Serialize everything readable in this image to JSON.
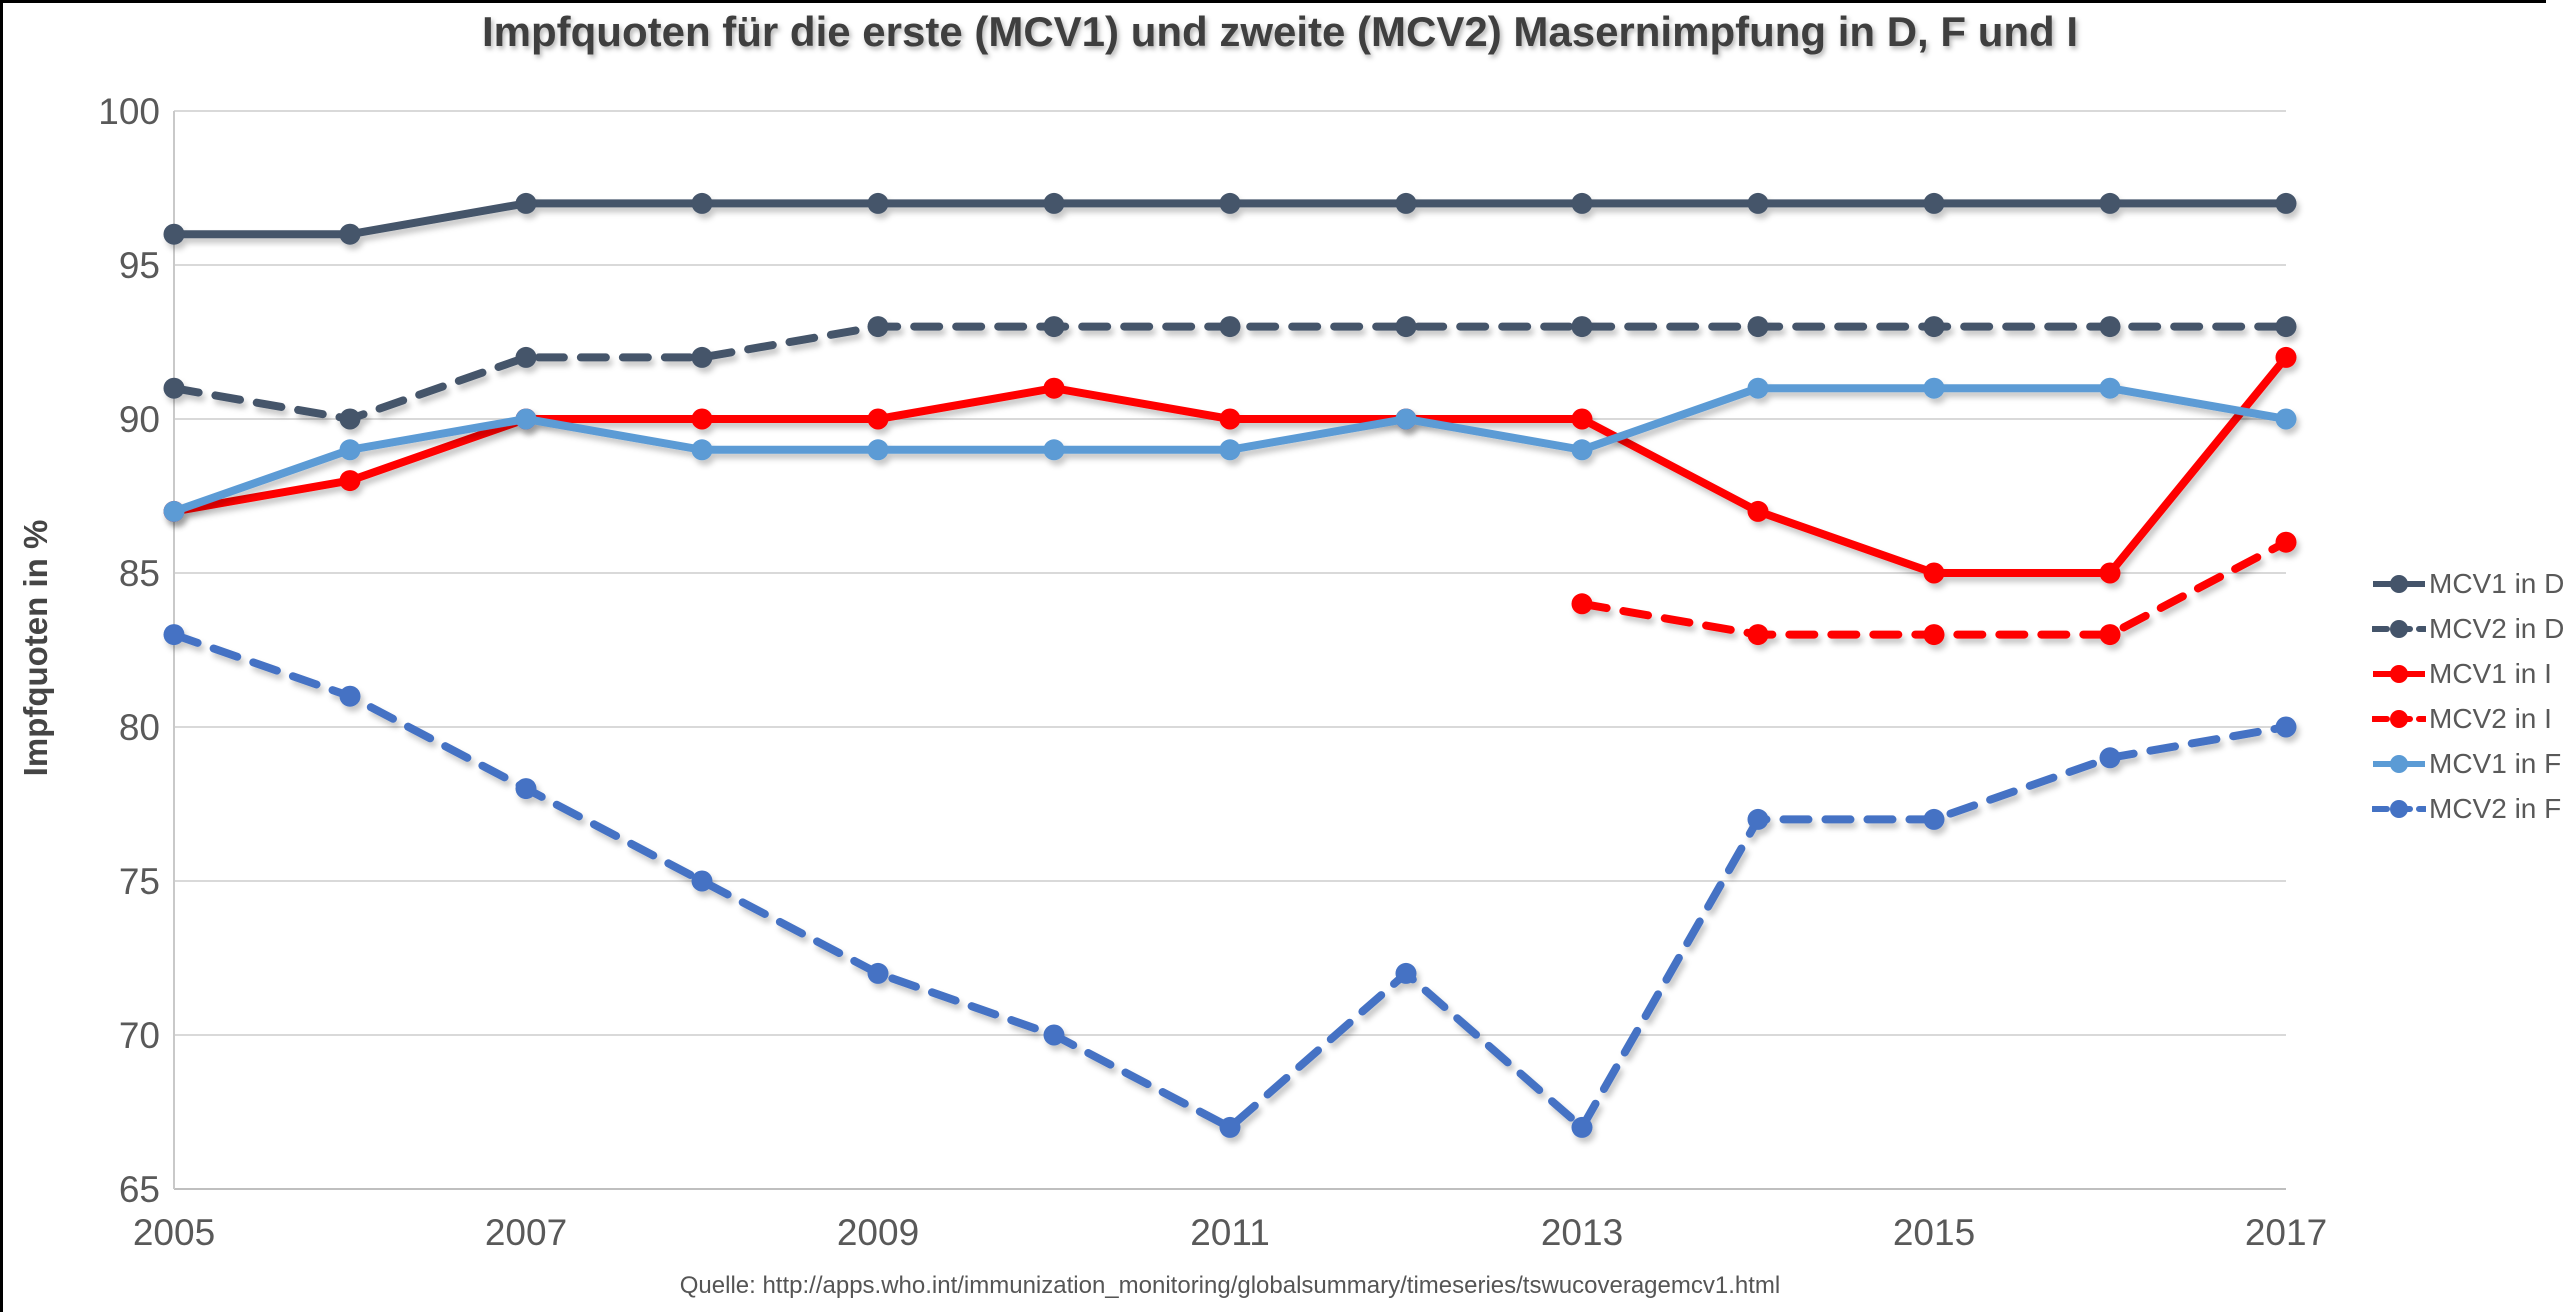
{
  "chart_data": {
    "type": "line",
    "title": "Impfquoten für die erste (MCV1) und zweite (MCV2) Masernimpfung in D, F und I",
    "ylabel": "Impfquoten in %",
    "source": "Quelle: http://apps.who.int/immunization_monitoring/globalsummary/timeseries/tswucoveragemcv1.html",
    "x": [
      2005,
      2006,
      2007,
      2008,
      2009,
      2010,
      2011,
      2012,
      2013,
      2014,
      2015,
      2016,
      2017
    ],
    "x_tick_labels": [
      "2005",
      "2007",
      "2009",
      "2011",
      "2013",
      "2015",
      "2017"
    ],
    "ylim": [
      65,
      100
    ],
    "y_ticks": [
      65,
      70,
      75,
      80,
      85,
      90,
      95,
      100
    ],
    "grid": "horizontal-only",
    "legend_position": "right",
    "series": [
      {
        "name": "MCV1 in D",
        "color": "#44546A",
        "style": "solid",
        "values": [
          96,
          96,
          97,
          97,
          97,
          97,
          97,
          97,
          97,
          97,
          97,
          97,
          97
        ]
      },
      {
        "name": "MCV2 in D",
        "color": "#44546A",
        "style": "dashed",
        "values": [
          91,
          90,
          92,
          92,
          93,
          93,
          93,
          93,
          93,
          93,
          93,
          93,
          93
        ]
      },
      {
        "name": "MCV1 in I",
        "color": "#FF0000",
        "style": "solid",
        "values": [
          87,
          88,
          90,
          90,
          90,
          91,
          90,
          90,
          90,
          87,
          85,
          85,
          92
        ]
      },
      {
        "name": "MCV2 in I",
        "color": "#FF0000",
        "style": "dashed",
        "values": [
          null,
          null,
          null,
          null,
          null,
          null,
          null,
          null,
          84,
          83,
          83,
          83,
          86
        ]
      },
      {
        "name": "MCV1 in F",
        "color": "#5B9BD5",
        "style": "solid",
        "values": [
          87,
          89,
          90,
          89,
          89,
          89,
          89,
          90,
          89,
          91,
          91,
          91,
          90
        ]
      },
      {
        "name": "MCV2 in F",
        "color": "#4472C4",
        "style": "dashed",
        "values": [
          83,
          81,
          78,
          75,
          72,
          70,
          67,
          72,
          67,
          77,
          77,
          79,
          80
        ]
      }
    ]
  },
  "colors": {
    "axis_text": "#595959",
    "title_text": "#3F3F3F",
    "gridline": "#D9D9D9",
    "axis_line": "#BFBFBF",
    "background": "#FFFFFF",
    "screen_edge": "#000000"
  }
}
